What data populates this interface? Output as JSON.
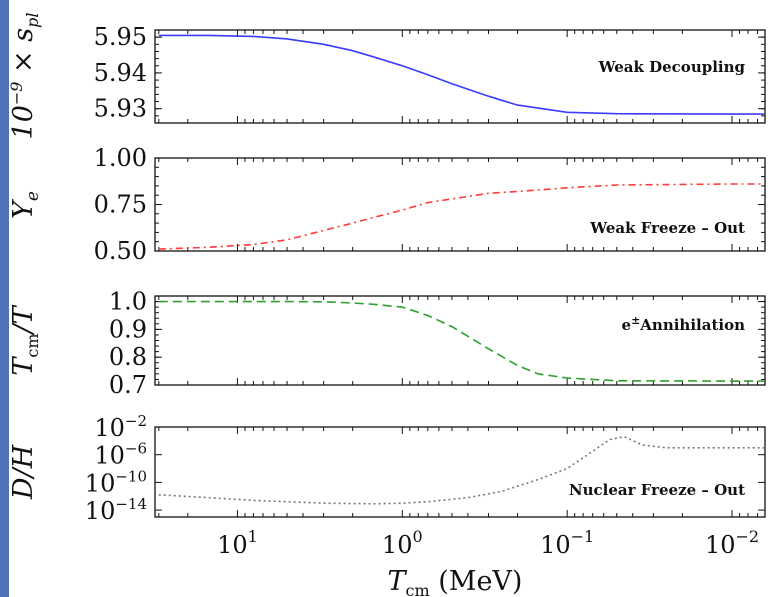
{
  "chart_data": [
    {
      "type": "line",
      "panel": "top",
      "ylabel": "10^{-9} × s_pl",
      "annotation": "Weak Decoupling",
      "ylim": [
        5.926,
        5.952
      ],
      "yticks": [
        5.93,
        5.94,
        5.95
      ],
      "ytick_labels": [
        "5.93",
        "5.94",
        "5.95"
      ],
      "series": [
        {
          "color": "#3b3bff",
          "style": "solid",
          "x": [
            30,
            15,
            8,
            5,
            3,
            2,
            1.5,
            1.0,
            0.7,
            0.5,
            0.3,
            0.2,
            0.1,
            0.05,
            0.01,
            0.006
          ],
          "y": [
            5.9505,
            5.9505,
            5.9502,
            5.9495,
            5.948,
            5.9462,
            5.9445,
            5.942,
            5.9395,
            5.937,
            5.9335,
            5.931,
            5.929,
            5.9286,
            5.9285,
            5.9285
          ]
        }
      ]
    },
    {
      "type": "line",
      "panel": "second",
      "ylabel": "Y_e",
      "annotation": "Weak Freeze – Out",
      "ylim": [
        0.5,
        1.0
      ],
      "yticks": [
        0.5,
        0.75,
        1.0
      ],
      "ytick_labels": [
        "0.50",
        "0.75",
        "1.00"
      ],
      "series": [
        {
          "color": "#ff3b3b",
          "style": "dashdot",
          "x": [
            30,
            15,
            8,
            5,
            3,
            2,
            1.5,
            1.0,
            0.7,
            0.5,
            0.3,
            0.2,
            0.1,
            0.05,
            0.01,
            0.006
          ],
          "y": [
            0.51,
            0.52,
            0.535,
            0.56,
            0.61,
            0.65,
            0.68,
            0.72,
            0.76,
            0.78,
            0.81,
            0.82,
            0.84,
            0.855,
            0.86,
            0.86
          ]
        }
      ]
    },
    {
      "type": "line",
      "panel": "third",
      "ylabel": "T_cm/T",
      "annotation": "e^±Annihilation",
      "ylim": [
        0.7,
        1.02
      ],
      "yticks": [
        0.7,
        0.8,
        0.9,
        1.0
      ],
      "ytick_labels": [
        "0.7",
        "0.8",
        "0.9",
        "1.0"
      ],
      "series": [
        {
          "color": "#2ca02c",
          "style": "dashed",
          "x": [
            30,
            10,
            5,
            3,
            2,
            1.5,
            1.0,
            0.7,
            0.5,
            0.3,
            0.2,
            0.15,
            0.1,
            0.05,
            0.01,
            0.006
          ],
          "y": [
            1.0,
            1.0,
            1.0,
            0.999,
            0.995,
            0.99,
            0.98,
            0.95,
            0.91,
            0.83,
            0.77,
            0.74,
            0.725,
            0.715,
            0.714,
            0.714
          ]
        }
      ]
    },
    {
      "type": "line",
      "panel": "bottom",
      "ylabel": "D/H",
      "annotation": "Nuclear Freeze – Out",
      "ylog": true,
      "ylim": [
        -15,
        -2
      ],
      "yticks": [
        -14,
        -10,
        -6,
        -2
      ],
      "ytick_labels": [
        "10^{-14}",
        "10^{-10}",
        "10^{-6}",
        "10^{-2}"
      ],
      "series": [
        {
          "color": "#777777",
          "style": "dotted",
          "x": [
            30,
            15,
            8,
            3,
            1.5,
            1.0,
            0.7,
            0.4,
            0.25,
            0.15,
            0.1,
            0.07,
            0.055,
            0.045,
            0.035,
            0.025,
            0.015,
            0.01,
            0.006
          ],
          "y": [
            -11.8,
            -12.2,
            -12.6,
            -13.0,
            -13.1,
            -13.0,
            -12.8,
            -12.2,
            -11.3,
            -9.6,
            -8.0,
            -5.5,
            -3.8,
            -3.4,
            -4.6,
            -5.0,
            -5.0,
            -5.0,
            -5.0
          ]
        }
      ]
    }
  ],
  "x_axis": {
    "label_main": "T",
    "label_sub": "cm",
    "label_unit": "(MeV)",
    "xlim_log10": [
      1.5,
      -2.2
    ],
    "reversed": true,
    "ticks": [
      {
        "pos": 1,
        "base": "10",
        "exp": "1"
      },
      {
        "pos": 0,
        "base": "10",
        "exp": "0"
      },
      {
        "pos": -1,
        "base": "10",
        "exp": "−1"
      },
      {
        "pos": -2,
        "base": "10",
        "exp": "−2"
      }
    ]
  }
}
